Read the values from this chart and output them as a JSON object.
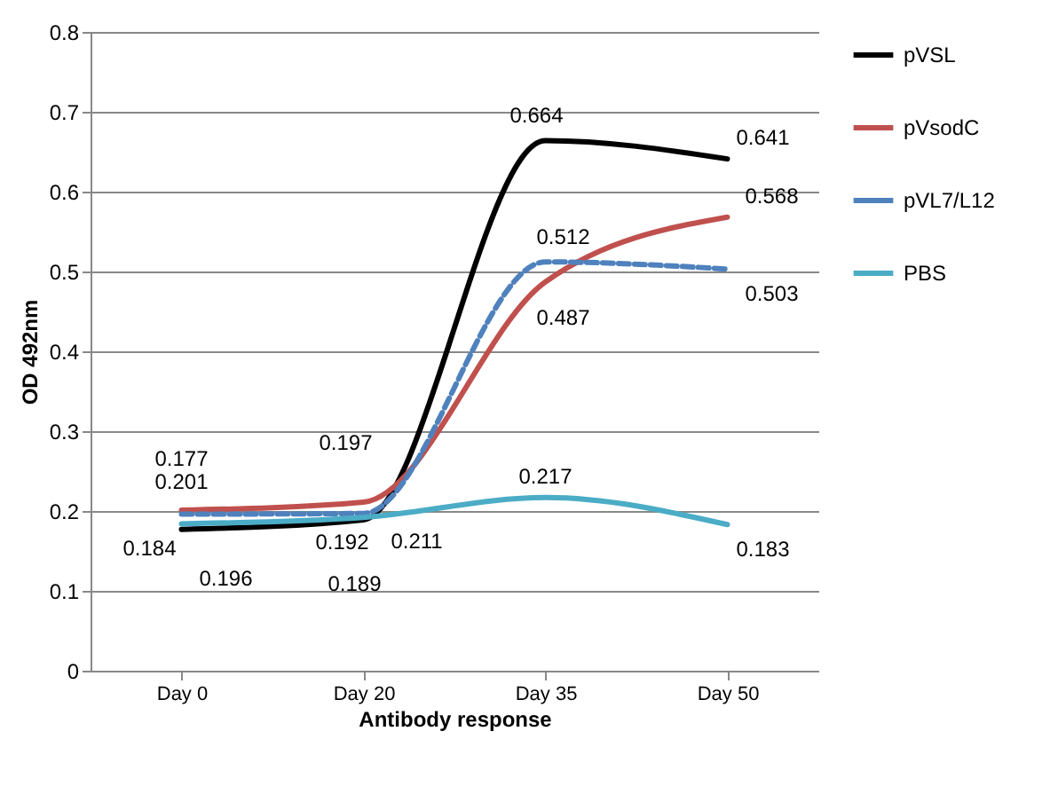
{
  "chart_data": {
    "type": "line",
    "xlabel": "Antibody response",
    "ylabel": "OD 492nm",
    "categories": [
      "Day 0",
      "Day 20",
      "Day 35",
      "Day 50"
    ],
    "series": [
      {
        "name": "pVSL",
        "color": "#000000",
        "values": [
          0.177,
          0.189,
          0.664,
          0.641
        ]
      },
      {
        "name": "pVsodC",
        "color": "#c0504d",
        "values": [
          0.201,
          0.211,
          0.487,
          0.568
        ]
      },
      {
        "name": "pVL7/L12",
        "color": "#4f81bd",
        "line_style": "dashed",
        "values": [
          0.196,
          0.197,
          0.512,
          0.503
        ]
      },
      {
        "name": "PBS",
        "color": "#4bacc6",
        "values": [
          0.184,
          0.192,
          0.217,
          0.183
        ]
      }
    ],
    "ylim": [
      0,
      0.8
    ],
    "yticks": [
      0,
      0.1,
      0.2,
      0.3,
      0.4,
      0.5,
      0.6,
      0.7,
      0.8
    ],
    "grid": "y",
    "legend": "right",
    "data_labels": true,
    "marker": "none"
  }
}
